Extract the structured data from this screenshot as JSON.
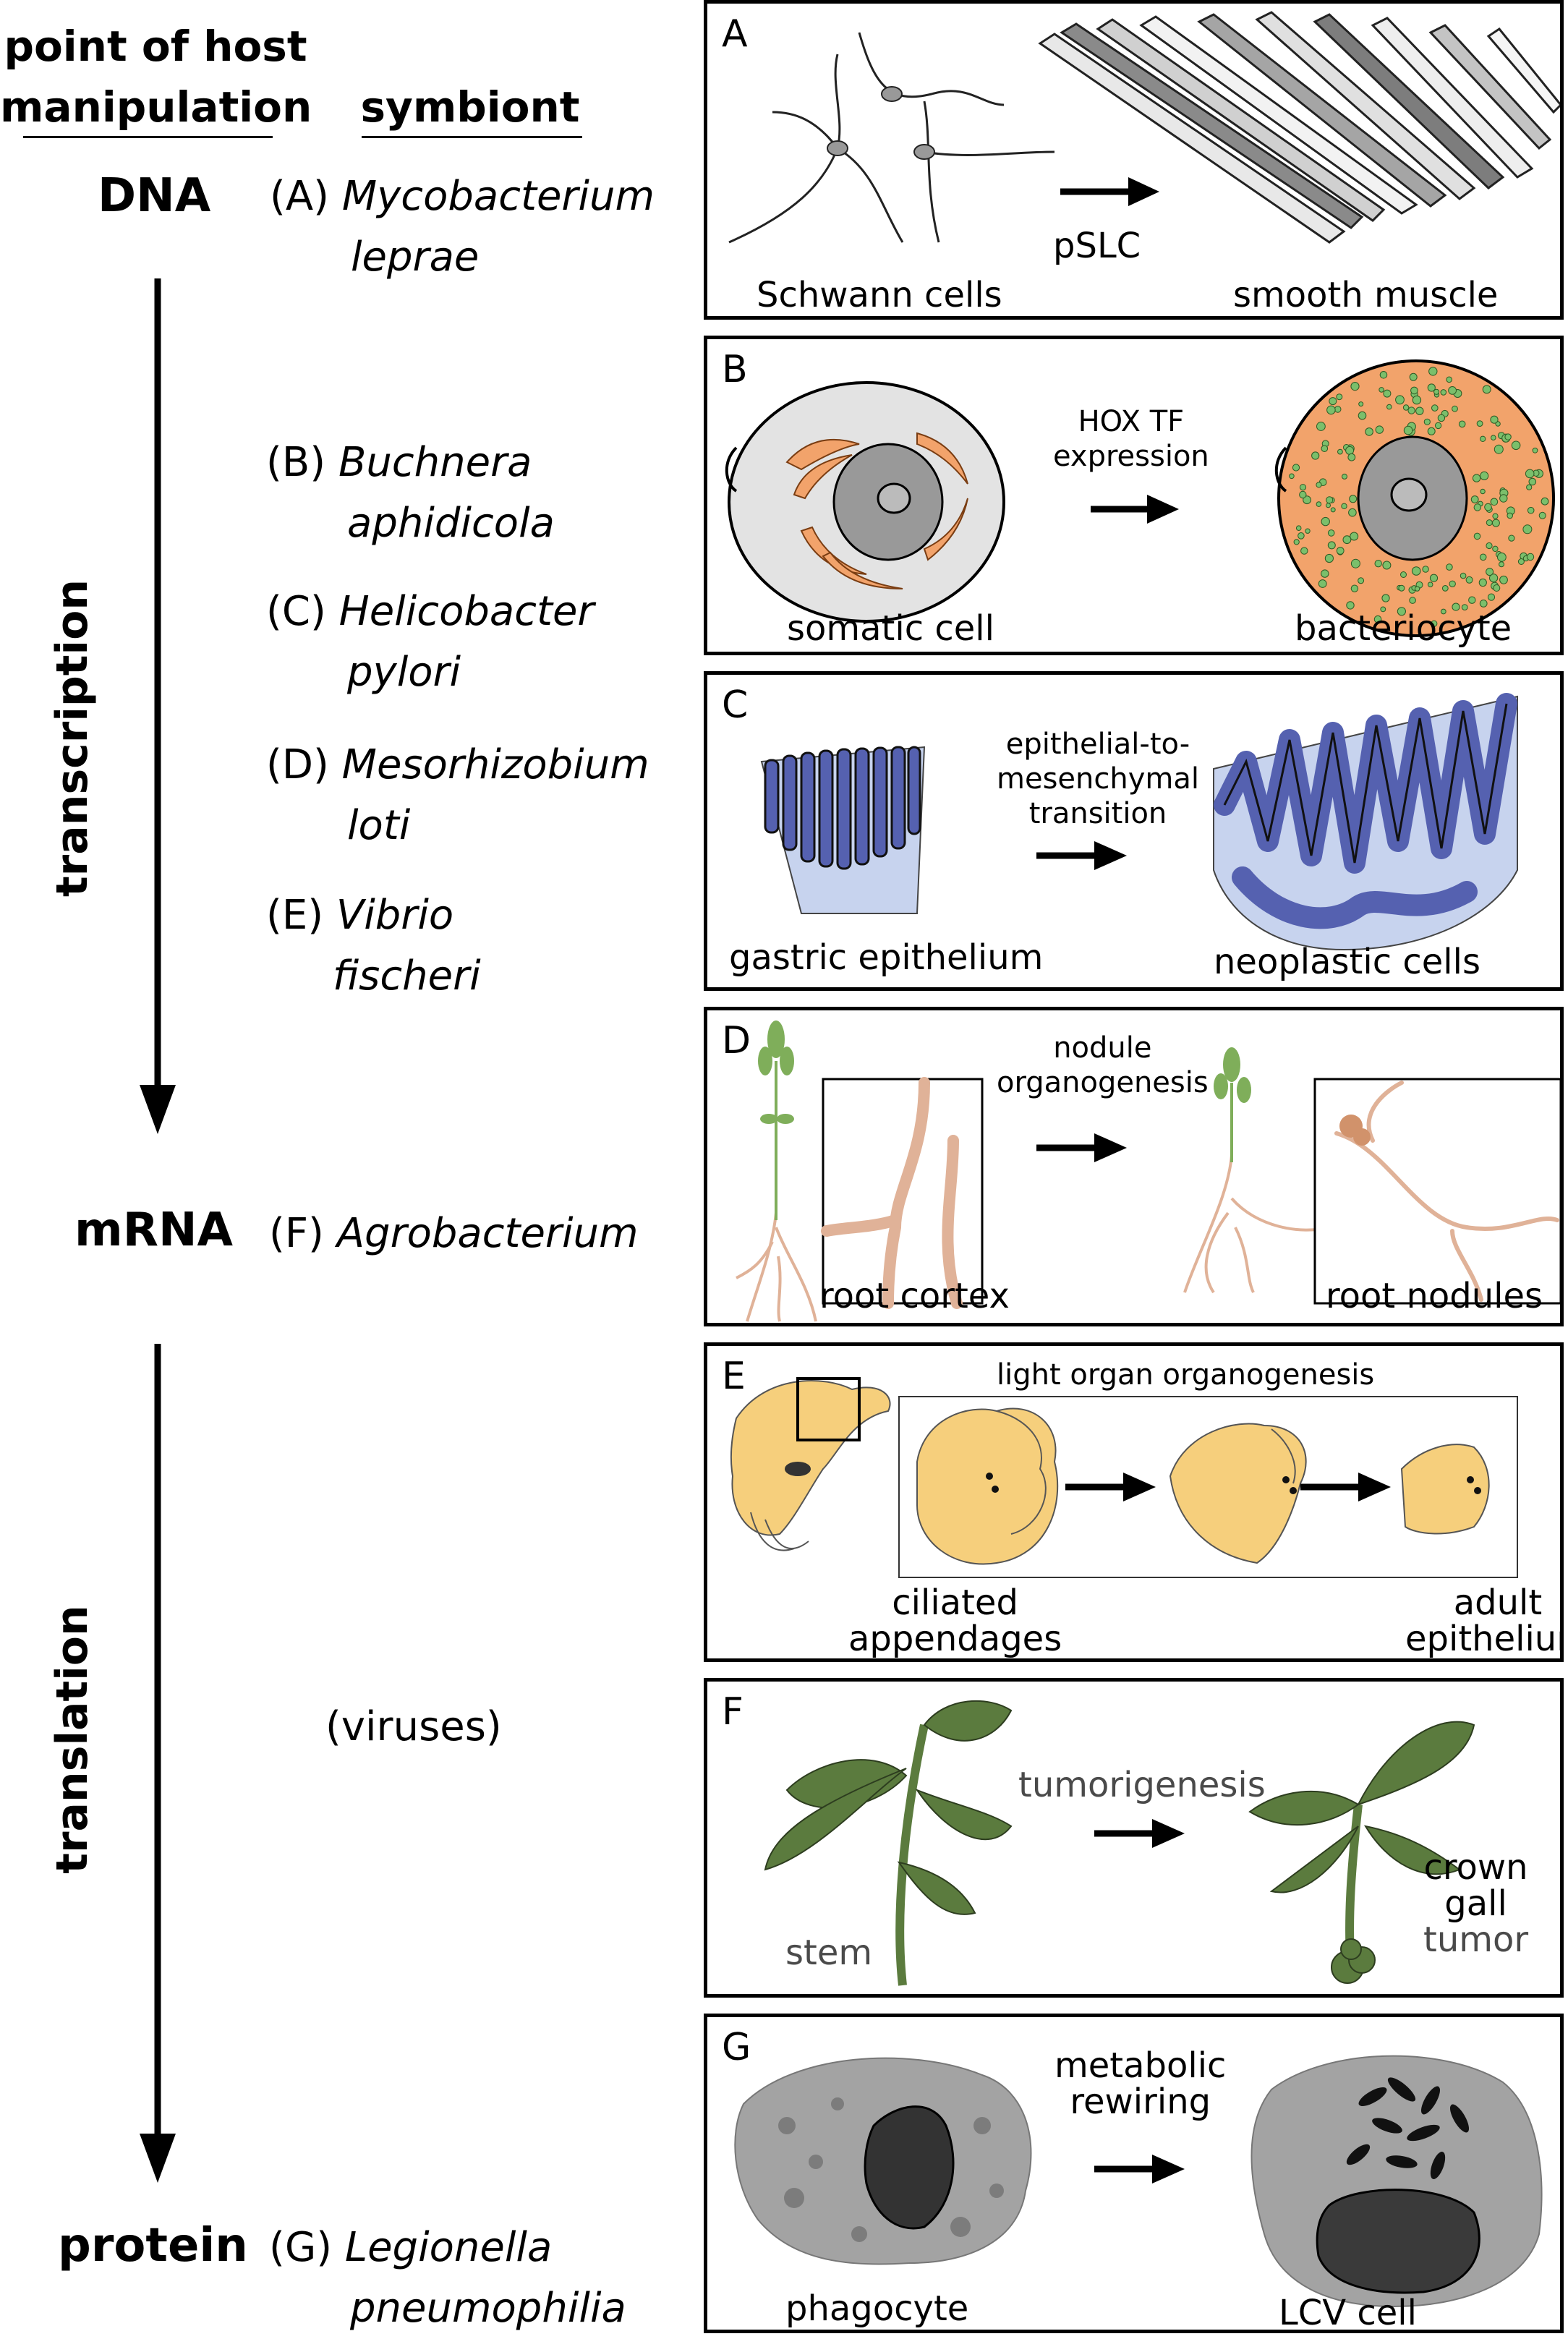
{
  "headers": {
    "point": "point of host\nmanipulation",
    "point_line1": "point of host",
    "point_line2": "manipulation",
    "symbiont": "symbiont"
  },
  "stages": {
    "dna": "DNA",
    "mrna": "mRNA",
    "protein": "protein",
    "transcription": "transcription",
    "translation": "translation"
  },
  "symbionts": [
    {
      "letter": "(A)",
      "line1": "Mycobacterium",
      "line2": "leprae"
    },
    {
      "letter": "(B)",
      "line1": "Buchnera",
      "line2": "aphidicola"
    },
    {
      "letter": "(C)",
      "line1": "Helicobacter",
      "line2": "pylori"
    },
    {
      "letter": "(D)",
      "line1": "Mesorhizobium",
      "line2": "loti"
    },
    {
      "letter": "(E)",
      "line1": "Vibrio",
      "line2": "fischeri"
    },
    {
      "letter": "(F)",
      "line1": "Agrobacterium",
      "line2": ""
    },
    {
      "letter": "(G)",
      "line1": "Legionella",
      "line2": "pneumophilia"
    }
  ],
  "viruses": "(viruses)",
  "panels": {
    "A": {
      "label": "A",
      "left": "Schwann cells",
      "process": "pSLC",
      "right": "smooth muscle"
    },
    "B": {
      "label": "B",
      "left": "somatic cell",
      "process_line1": "HOX TF",
      "process_line2": "expression",
      "right": "bacteriocyte"
    },
    "C": {
      "label": "C",
      "left": "gastric epithelium",
      "process_line1": "epithelial-to-",
      "process_line2": "mesenchymal",
      "process_line3": "transition",
      "right": "neoplastic cells"
    },
    "D": {
      "label": "D",
      "left": "root cortex",
      "process_line1": "nodule",
      "process_line2": "organogenesis",
      "right": "root nodules"
    },
    "E": {
      "label": "E",
      "title": "light organ organogenesis",
      "left_line1": "ciliated",
      "left_line2": "appendages",
      "right_line1": "adult",
      "right_line2": "epithelium"
    },
    "F": {
      "label": "F",
      "left": "stem",
      "process": "tumorigenesis",
      "right_line1": "crown",
      "right_line2": "gall",
      "right_line3": "tumor"
    },
    "G": {
      "label": "G",
      "left": "phagocyte",
      "process_line1": "metabolic",
      "process_line2": "rewiring",
      "right": "LCV cell"
    }
  },
  "colors": {
    "orange": "#f2a36b",
    "blue": "#5561b0",
    "lightblue": "#c7d3ee",
    "yellow": "#f6cf7c",
    "green": "#5b7b3e",
    "root": "#e0b298",
    "gray": "#9a9a9a"
  }
}
